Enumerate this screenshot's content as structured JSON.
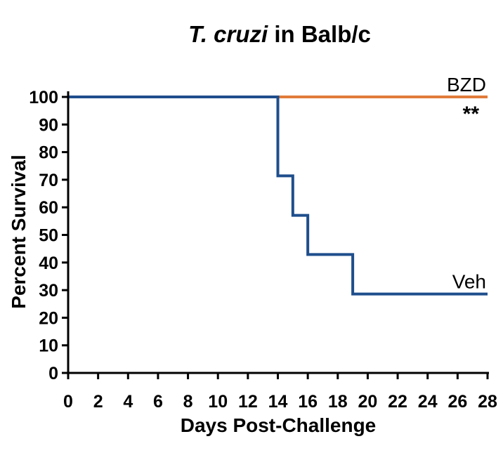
{
  "chart_data": {
    "type": "line",
    "title_italic": "T. cruzi",
    "title_rest": " in Balb/c",
    "xlabel": "Days Post-Challenge",
    "ylabel": "Percent Survival",
    "xlim": [
      0,
      28
    ],
    "ylim": [
      0,
      100
    ],
    "x_ticks": [
      "0",
      "2",
      "4",
      "6",
      "8",
      "10",
      "12",
      "14",
      "16",
      "18",
      "20",
      "22",
      "24",
      "26",
      "28"
    ],
    "y_ticks": [
      "0",
      "10",
      "20",
      "30",
      "40",
      "50",
      "60",
      "70",
      "80",
      "90",
      "100"
    ],
    "grid": false,
    "step": true,
    "series": [
      {
        "name": "BZD",
        "color": "#E07B39",
        "x": [
          0,
          28
        ],
        "y": [
          100,
          100
        ],
        "annotation": "**"
      },
      {
        "name": "Veh",
        "color": "#1F4E8C",
        "x": [
          0,
          14,
          15,
          16,
          19,
          28
        ],
        "y": [
          100,
          71.4,
          57.1,
          42.9,
          28.6,
          28.6
        ]
      }
    ]
  }
}
